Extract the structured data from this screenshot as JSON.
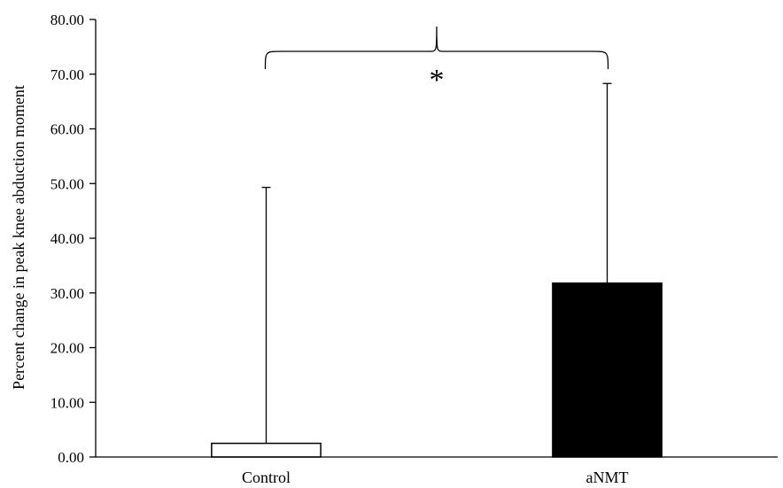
{
  "chart_data": {
    "type": "bar",
    "title": "",
    "xlabel": "",
    "ylabel": "Percent change in peak knee abduction moment",
    "ylim": [
      0,
      80
    ],
    "yticks": [
      0,
      10,
      20,
      30,
      40,
      50,
      60,
      70,
      80
    ],
    "ytick_labels": [
      "0.00",
      "10.00",
      "20.00",
      "30.00",
      "40.00",
      "50.00",
      "60.00",
      "70.00",
      "80.00"
    ],
    "categories": [
      "Control",
      "aNMT"
    ],
    "values": [
      2.5,
      31.8
    ],
    "error_upper": [
      49.3,
      68.3
    ],
    "bar_fills": [
      "#ffffff",
      "#000000"
    ],
    "bar_stroke": "#000000",
    "grid": false,
    "significance": {
      "symbol": "*",
      "between": [
        "Control",
        "aNMT"
      ]
    }
  }
}
